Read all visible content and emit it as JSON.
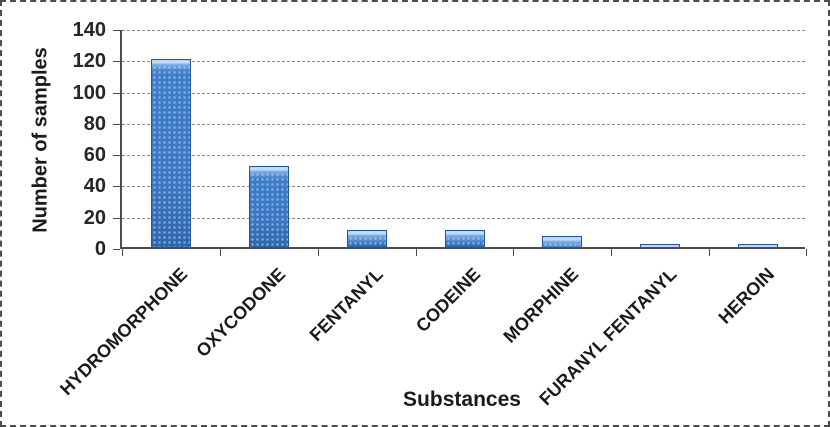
{
  "chart_data": {
    "type": "bar",
    "title": "",
    "xlabel": "Substances",
    "ylabel": "Number of samples",
    "categories": [
      "HYDROMORPHONE",
      "OXYCODONE",
      "FENTANYL",
      "CODEINE",
      "MORPHINE",
      "FURANYL FENTANYL",
      "HEROIN"
    ],
    "values": [
      120,
      52,
      11,
      11,
      7,
      2,
      2
    ],
    "ylim": [
      0,
      140
    ],
    "ytick_step": 20,
    "grid": "horizontal-dashed",
    "legend_position": "none",
    "bar_color": "#3E7CC9",
    "bar_border_color": "#24579C",
    "axis_color": "#4D4D4D",
    "gridline_color": "#8F8F8F",
    "text_color": "#1A1A1A",
    "background_color": "#FFFFFF"
  }
}
